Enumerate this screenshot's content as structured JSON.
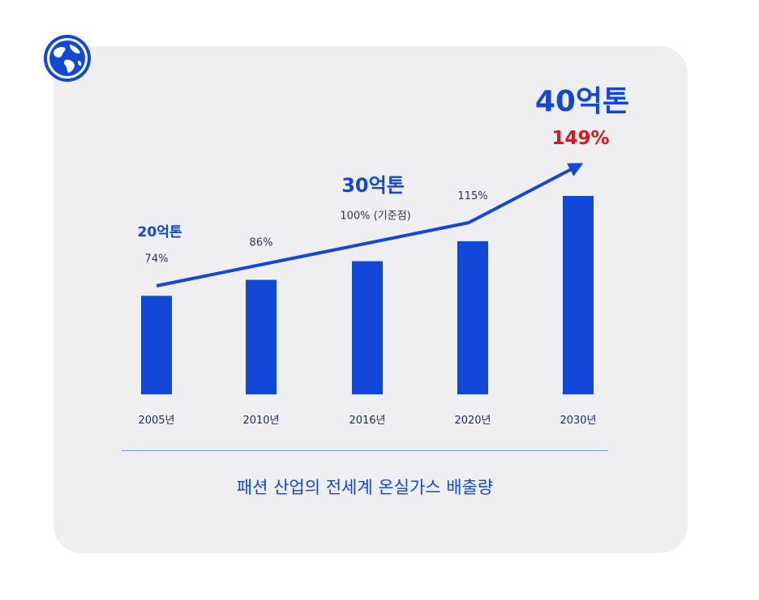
{
  "chart_data": {
    "type": "bar",
    "categories": [
      "2005년",
      "2010년",
      "2016년",
      "2020년",
      "2030년"
    ],
    "values": [
      74,
      86,
      100,
      115,
      149
    ],
    "percent_labels": [
      "74%",
      "86%",
      "100% (기준점)",
      "115%",
      ""
    ],
    "amount_labels": {
      "2005년": "20억톤",
      "2016년": "30억톤",
      "2030년": "40억톤"
    },
    "highlight_label": "149%",
    "title": "패션 산업의 전세계 온실가스 배출량",
    "xlabel": "",
    "ylabel": "",
    "ylim": [
      0,
      160
    ],
    "grid": false,
    "trend_arrow": true
  },
  "colors": {
    "bar": "#1148d8",
    "highlight": "#e0141b",
    "card_background": "#efeff1"
  },
  "icons": {
    "corner_icon": "globe-icon"
  }
}
